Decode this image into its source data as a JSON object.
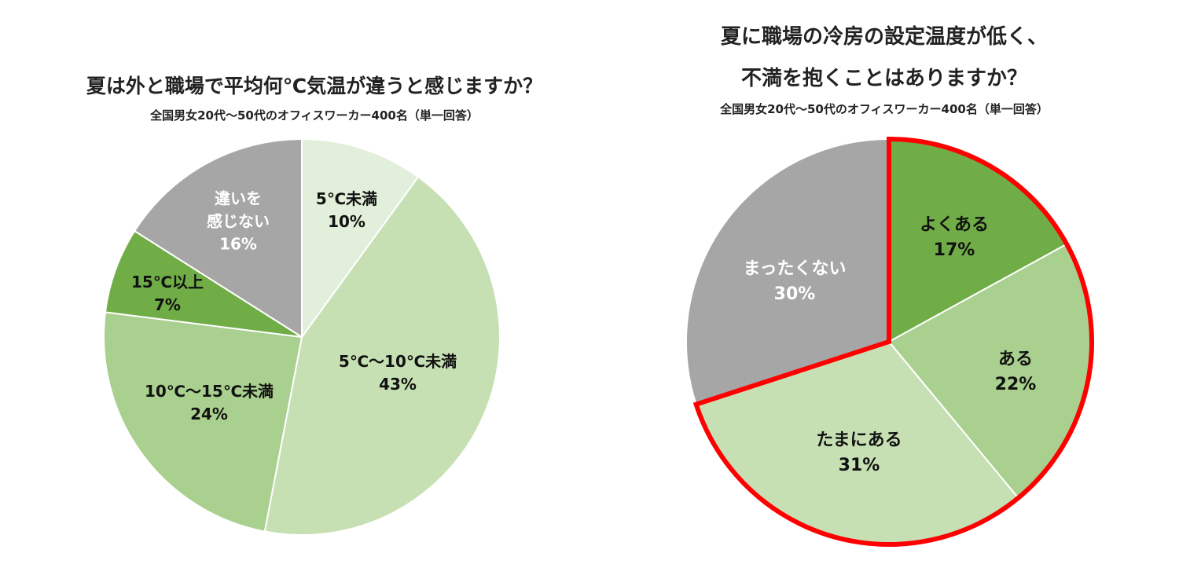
{
  "chart_data": [
    {
      "type": "pie",
      "title": "夏は外と職場で平均何℃気温が違うと感じますか？",
      "subtitle": "全国男女20代～50代のオフィスワーカー400名（単一回答）",
      "start": "12-o'clock",
      "direction": "clockwise",
      "slices": [
        {
          "lines": [
            "5℃未満"
          ],
          "pct_label": "10%",
          "value": 10,
          "color": "#e2efda",
          "label_color": "#111111"
        },
        {
          "lines": [
            "5℃～10℃未満"
          ],
          "pct_label": "43%",
          "value": 43,
          "color": "#c6e0b4",
          "label_color": "#111111"
        },
        {
          "lines": [
            "10℃～15℃未満"
          ],
          "pct_label": "24%",
          "value": 24,
          "color": "#a9d08e",
          "label_color": "#111111"
        },
        {
          "lines": [
            "15℃以上"
          ],
          "pct_label": "7%",
          "value": 7,
          "color": "#70ad47",
          "label_color": "#111111"
        },
        {
          "lines": [
            "違いを",
            "感じない"
          ],
          "pct_label": "16%",
          "value": 16,
          "color": "#a6a6a6",
          "label_color": "#ffffff"
        }
      ]
    },
    {
      "type": "pie",
      "title_lines": [
        "夏に職場の冷房の設定温度が低く、",
        "不満を抱くことはありますか？"
      ],
      "subtitle": "全国男女20代～50代のオフィスワーカー400名（単一回答）",
      "start": "12-o'clock",
      "direction": "clockwise",
      "highlight": {
        "slices": [
          "よくある",
          "ある",
          "たまにある"
        ],
        "color": "#ff0000"
      },
      "slices": [
        {
          "lines": [
            "よくある"
          ],
          "pct_label": "17%",
          "value": 17,
          "color": "#70ad47",
          "label_color": "#111111"
        },
        {
          "lines": [
            "ある"
          ],
          "pct_label": "22%",
          "value": 22,
          "color": "#a9d08e",
          "label_color": "#111111"
        },
        {
          "lines": [
            "たまにある"
          ],
          "pct_label": "31%",
          "value": 31,
          "color": "#c6e0b4",
          "label_color": "#111111"
        },
        {
          "lines": [
            "まったくない"
          ],
          "pct_label": "30%",
          "value": 30,
          "color": "#a6a6a6",
          "label_color": "#ffffff"
        }
      ]
    }
  ]
}
